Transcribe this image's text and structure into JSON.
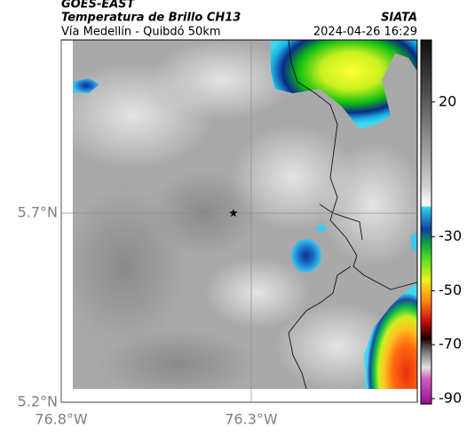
{
  "header": {
    "title": "GOES-EAST",
    "subtitle": "Temperatura de Brillo CH13",
    "route": "Vía Medellín - Quibdó 50km",
    "source": "SIATA",
    "timestamp": "2024-04-26 16:29"
  },
  "map": {
    "xlim": [
      -76.8,
      -75.863
    ],
    "ylim": [
      5.2,
      6.158
    ],
    "xticks": [
      {
        "value": -76.8,
        "label": "76.8°W"
      },
      {
        "value": -76.3,
        "label": "76.3°W"
      }
    ],
    "yticks": [
      {
        "value": 5.2,
        "label": "5.2°N"
      },
      {
        "value": 5.7,
        "label": "5.7°N"
      }
    ],
    "grid": true,
    "marker": {
      "lon": -76.347,
      "lat": 5.7
    }
  },
  "colorbar": {
    "lim": [
      43,
      -92
    ],
    "ticks": [
      20,
      -30,
      -50,
      -70,
      -90
    ]
  }
}
